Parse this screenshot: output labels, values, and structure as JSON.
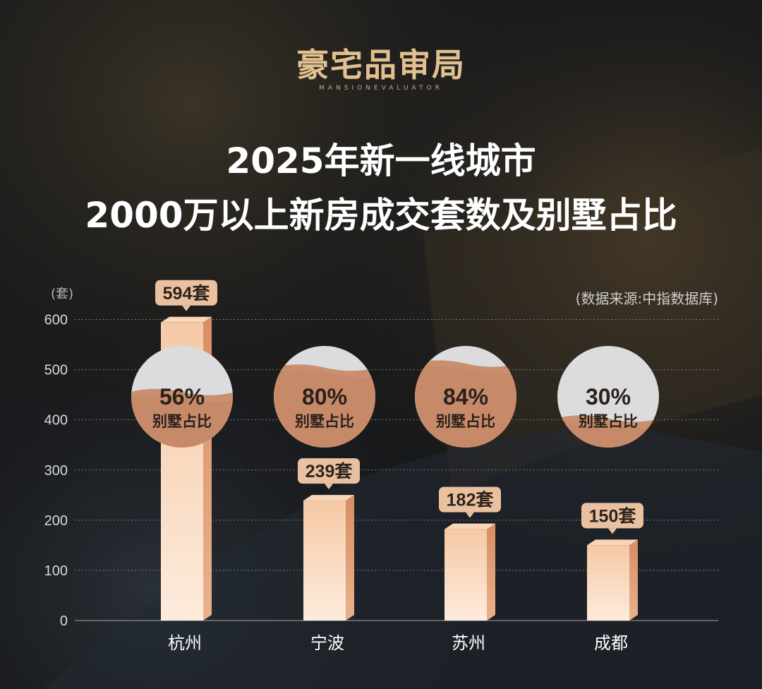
{
  "brand": {
    "name": "豪宅品审局",
    "tagline": "MANSIONEVALUATOR"
  },
  "title": {
    "line1": "2025年新一线城市",
    "line2": "2000万以上新房成交套数及别墅占比"
  },
  "unit_label": "(套)",
  "source_label": "(数据来源:中指数据库)",
  "colors": {
    "bar_light": "#fbe3cc",
    "bar_dark": "#e2a47c",
    "label_bg": "#eac1a0",
    "circle_fill": "#c98f6f",
    "circle_top": "#dcdcde"
  },
  "chart_data": {
    "type": "bar",
    "categories": [
      "杭州",
      "宁波",
      "苏州",
      "成都"
    ],
    "values": [
      594,
      239,
      182,
      150
    ],
    "value_labels": [
      "594套",
      "239套",
      "182套",
      "150套"
    ],
    "villa_share": [
      0.56,
      0.8,
      0.84,
      0.3
    ],
    "villa_share_labels": [
      "56%",
      "80%",
      "84%",
      "30%"
    ],
    "villa_caption": "别墅占比",
    "yticks": [
      0,
      100,
      200,
      300,
      400,
      500,
      600
    ],
    "ylim": [
      0,
      600
    ],
    "ylabel": "(套)",
    "grid": true
  }
}
